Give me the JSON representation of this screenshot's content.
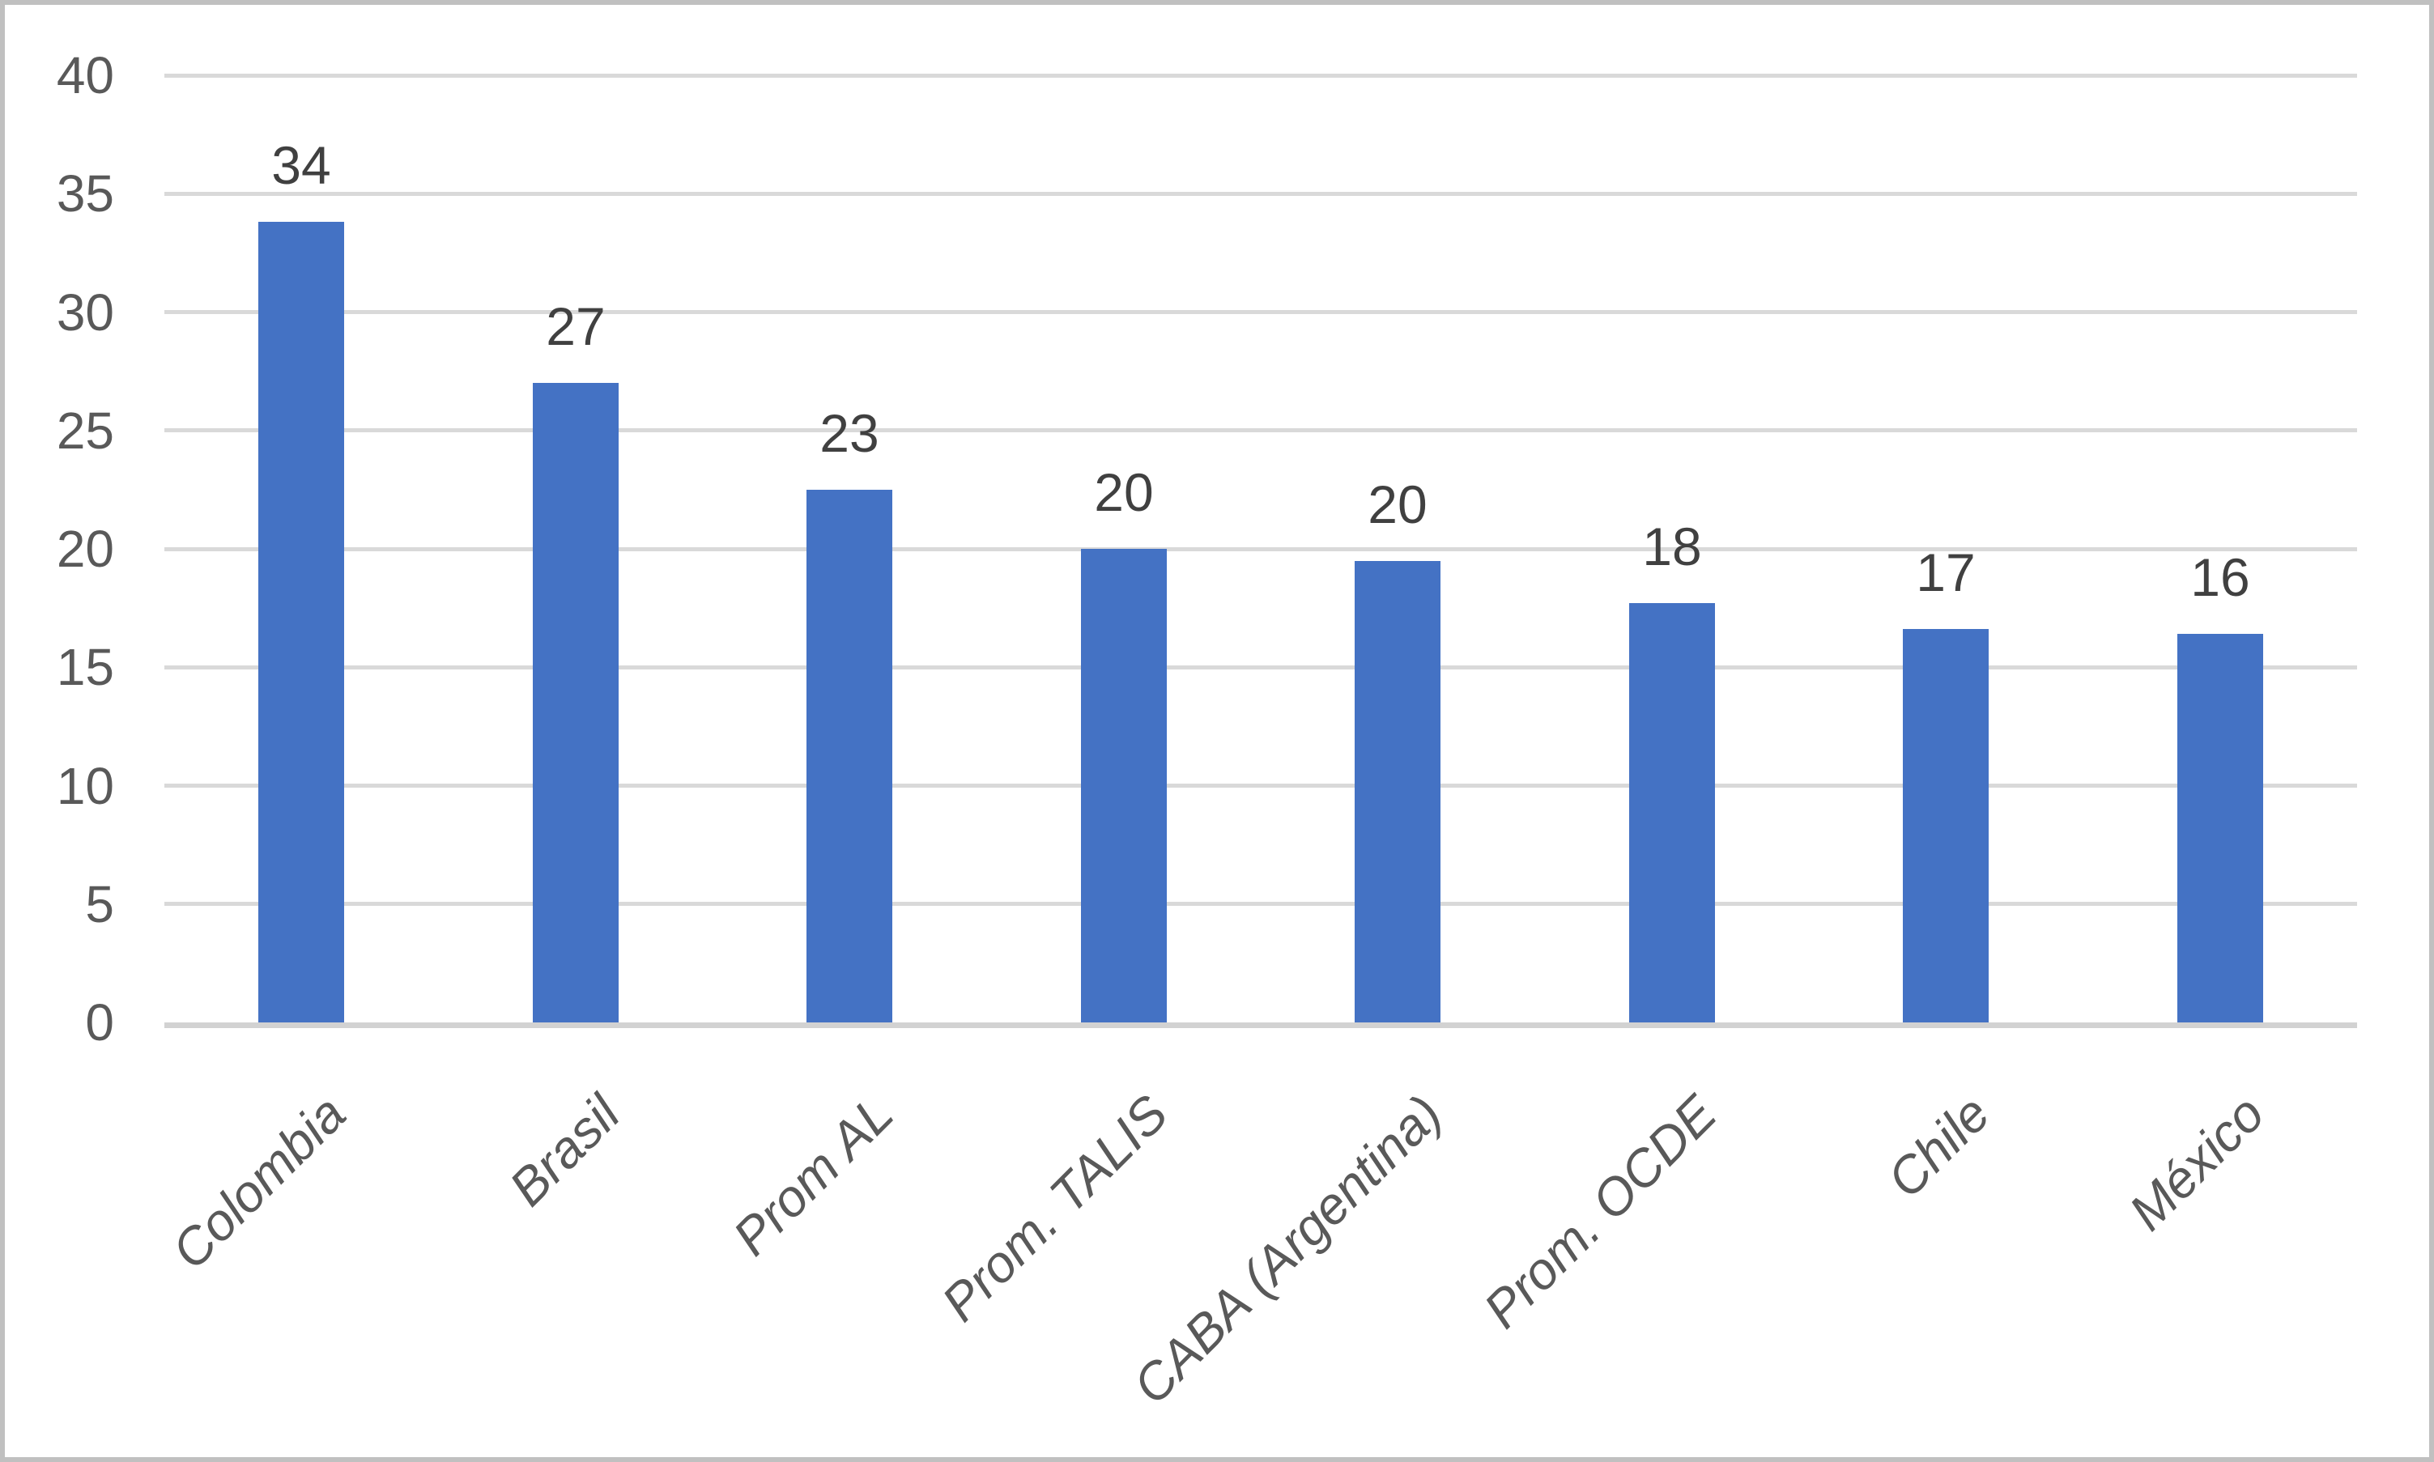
{
  "chart_data": {
    "type": "bar",
    "title": "",
    "xlabel": "",
    "ylabel": "",
    "categories": [
      "Colombia",
      "Brasil",
      "Prom AL",
      "Prom. TALIS",
      "CABA (Argentina)",
      "Prom. OCDE",
      "Chile",
      "México"
    ],
    "values": [
      33.8,
      27.0,
      22.5,
      20.0,
      19.5,
      17.7,
      16.6,
      16.4
    ],
    "data_labels": [
      "34",
      "27",
      "23",
      "20",
      "20",
      "18",
      "17",
      "16"
    ],
    "ylim": [
      0,
      40
    ],
    "yticks": [
      0,
      5,
      10,
      15,
      20,
      25,
      30,
      35,
      40
    ],
    "grid": true,
    "legend": false,
    "series_name": "",
    "colors": {
      "bar": "#4472C4",
      "gridline": "#D9D9D9",
      "axis_line": "#D2D2D2",
      "tick_label": "#595959",
      "data_label": "#404040",
      "frame_border": "#C0C0C0"
    }
  }
}
